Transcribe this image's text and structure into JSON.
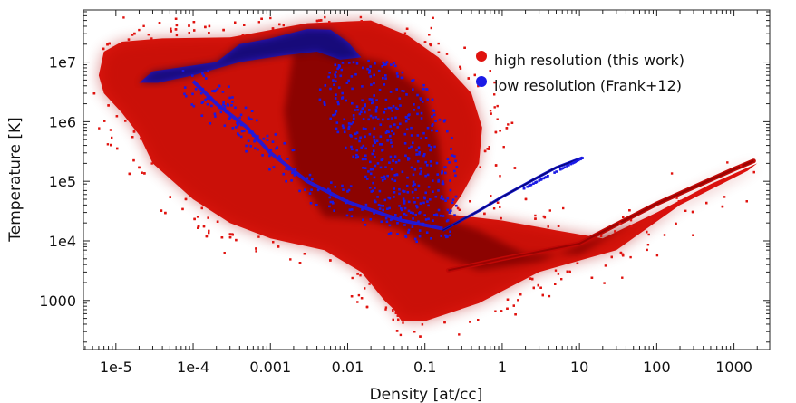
{
  "chart_data": {
    "type": "scatter",
    "title": "",
    "xlabel": "Density [at/cc]",
    "ylabel": "Temperature [K]",
    "xscale": "log",
    "yscale": "log",
    "xlim": [
      3.8e-06,
      2900
    ],
    "ylim": [
      150,
      75000000
    ],
    "x_ticks": [
      {
        "value": 1e-05,
        "label": "1e-5"
      },
      {
        "value": 0.0001,
        "label": "1e-4"
      },
      {
        "value": 0.001,
        "label": "0.001"
      },
      {
        "value": 0.01,
        "label": "0.01"
      },
      {
        "value": 0.1,
        "label": "0.1"
      },
      {
        "value": 1,
        "label": "1"
      },
      {
        "value": 10,
        "label": "10"
      },
      {
        "value": 100,
        "label": "100"
      },
      {
        "value": 1000,
        "label": "1000"
      }
    ],
    "y_ticks": [
      {
        "value": 1000,
        "label": "1000"
      },
      {
        "value": 10000,
        "label": "1e4"
      },
      {
        "value": 100000,
        "label": "1e5"
      },
      {
        "value": 1000000,
        "label": "1e6"
      },
      {
        "value": 10000000,
        "label": "1e7"
      }
    ],
    "legend_position": "top-right",
    "series": [
      {
        "name": "high resolution (this work)",
        "color": "#e0130f",
        "dark_color": "#7d0000",
        "region_outline": [
          [
            7e-06,
            15000000.0
          ],
          [
            1.2e-05,
            22000000.0
          ],
          [
            4e-05,
            25000000.0
          ],
          [
            0.0003,
            26000000.0
          ],
          [
            0.003,
            45000000.0
          ],
          [
            0.02,
            50000000.0
          ],
          [
            0.06,
            28000000.0
          ],
          [
            0.15,
            12000000.0
          ],
          [
            0.4,
            3000000.0
          ],
          [
            0.55,
            800000.0
          ],
          [
            0.5,
            200000.0
          ],
          [
            0.3,
            60000.0
          ],
          [
            0.2,
            28000.0
          ],
          [
            1,
            22000.0
          ],
          [
            5,
            15000.0
          ],
          [
            20,
            11000.0
          ],
          [
            100,
            30000.0
          ],
          [
            500,
            90000.0
          ],
          [
            2000,
            200000.0
          ],
          [
            1500,
            150000.0
          ],
          [
            200,
            40000.0
          ],
          [
            30,
            7000.0
          ],
          [
            3,
            3000.0
          ],
          [
            0.5,
            900
          ],
          [
            0.1,
            450
          ],
          [
            0.05,
            450
          ],
          [
            0.04,
            700
          ],
          [
            0.03,
            1000
          ],
          [
            0.015,
            3000
          ],
          [
            0.005,
            7000
          ],
          [
            0.001,
            11000
          ],
          [
            0.0003,
            20000
          ],
          [
            0.0001,
            50000
          ],
          [
            3e-05,
            200000.0
          ],
          [
            2e-05,
            600000.0
          ],
          [
            1.2e-05,
            1400000.0
          ],
          [
            7e-06,
            3000000.0
          ],
          [
            6e-06,
            6000000.0
          ]
        ],
        "dense_core": [
          [
            0.002,
            15000000.0
          ],
          [
            0.005,
            16000000.0
          ],
          [
            0.03,
            10000000.0
          ],
          [
            0.1,
            3000000.0
          ],
          [
            0.15,
            500000.0
          ],
          [
            0.2,
            23000.0
          ],
          [
            0.5,
            15000.0
          ],
          [
            2,
            6000.0
          ],
          [
            10,
            6000.0
          ],
          [
            60,
            23000.0
          ],
          [
            20,
            12000.0
          ],
          [
            3,
            4500.0
          ],
          [
            0.5,
            3200.0
          ],
          [
            0.15,
            6000.0
          ],
          [
            0.05,
            15000.0
          ],
          [
            0.02,
            22000.0
          ],
          [
            0.005,
            25000.0
          ],
          [
            0.002,
            150000.0
          ],
          [
            0.0015,
            1500000.0
          ]
        ],
        "tail": [
          [
            0.2,
            3200.0
          ],
          [
            1,
            5000.0
          ],
          [
            10,
            9000.0
          ],
          [
            100,
            42000.0
          ],
          [
            1000,
            160000.0
          ],
          [
            1800,
            220000.0
          ]
        ]
      },
      {
        "name": "low resolution (Frank+12)",
        "color": "#1a1ae6",
        "dark_color": "#06063c",
        "box_outline": [
          [
            2e-05,
            4500000.0
          ],
          [
            3e-05,
            7000000.0
          ],
          [
            0.0002,
            10000000.0
          ],
          [
            0.0004,
            20000000.0
          ],
          [
            0.001,
            25000000.0
          ],
          [
            0.003,
            36000000.0
          ],
          [
            0.006,
            35000000.0
          ],
          [
            0.01,
            22000000.0
          ],
          [
            0.015,
            12000000.0
          ],
          [
            0.008,
            11000000.0
          ],
          [
            0.004,
            15000000.0
          ],
          [
            0.0015,
            13000000.0
          ],
          [
            0.0004,
            10000000.0
          ],
          [
            0.0001,
            6000000.0
          ],
          [
            3.5e-05,
            4500000.0
          ]
        ],
        "lower_branch": [
          [
            0.0001,
            4800000.0
          ],
          [
            0.0002,
            2000000.0
          ],
          [
            0.0005,
            800000.0
          ],
          [
            0.001,
            300000.0
          ],
          [
            0.003,
            100000.0
          ],
          [
            0.01,
            45000.0
          ],
          [
            0.05,
            22000.0
          ],
          [
            0.17,
            16000.0
          ]
        ],
        "line": [
          [
            0.17,
            15000.0
          ],
          [
            0.5,
            32000.0
          ],
          [
            1,
            55000.0
          ],
          [
            3,
            120000.0
          ],
          [
            5,
            170000.0
          ],
          [
            11,
            250000.0
          ]
        ],
        "scatter_region": [
          [
            0.005,
            10000000.0
          ],
          [
            0.2,
            10000000.0
          ],
          [
            0.2,
            25000.0
          ],
          [
            0.005,
            25000.0
          ]
        ]
      }
    ]
  }
}
